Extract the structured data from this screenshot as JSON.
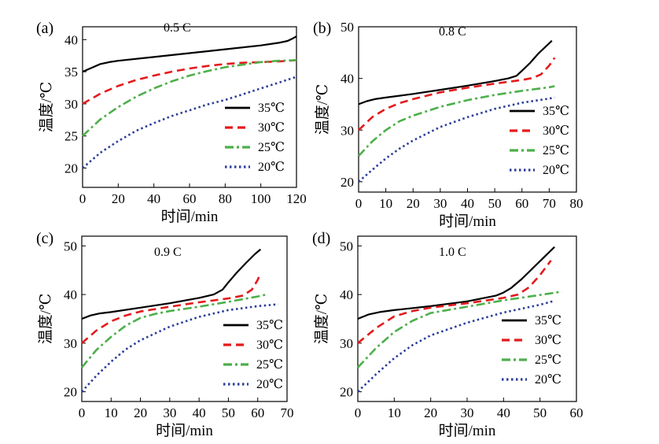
{
  "chart_data": [
    {
      "type": "line",
      "panel_letter": "(a)",
      "annotation": "0.5 C",
      "xlabel": "时间/min",
      "ylabel": "温度/℃",
      "xlim": [
        0,
        120
      ],
      "ylim": [
        17,
        42
      ],
      "xticks": [
        0,
        20,
        40,
        60,
        80,
        100,
        120
      ],
      "yticks": [
        20,
        25,
        30,
        35,
        40
      ],
      "legend_position": "bottom-right",
      "series": [
        {
          "name": "35℃",
          "color": "#000000",
          "style": "solid",
          "x": [
            0,
            5,
            10,
            15,
            20,
            40,
            60,
            80,
            100,
            110,
            115,
            118,
            120
          ],
          "y": [
            35,
            35.6,
            36.2,
            36.5,
            36.7,
            37.3,
            37.9,
            38.5,
            39.1,
            39.5,
            39.8,
            40.2,
            40.5
          ]
        },
        {
          "name": "30℃",
          "color": "#e41a1c",
          "style": "dash",
          "x": [
            0,
            10,
            20,
            30,
            40,
            50,
            60,
            70,
            80,
            90,
            100,
            110,
            120
          ],
          "y": [
            30,
            31.6,
            32.8,
            33.7,
            34.4,
            35.0,
            35.5,
            35.9,
            36.2,
            36.4,
            36.5,
            36.6,
            36.8
          ]
        },
        {
          "name": "25℃",
          "color": "#4daf4a",
          "style": "dashdot",
          "x": [
            0,
            10,
            20,
            30,
            40,
            50,
            60,
            70,
            80,
            90,
            100,
            110,
            120
          ],
          "y": [
            25,
            27.6,
            29.5,
            31.1,
            32.4,
            33.5,
            34.4,
            35.1,
            35.7,
            36.1,
            36.5,
            36.7,
            36.8
          ]
        },
        {
          "name": "20℃",
          "color": "#2b3d9a",
          "style": "dot",
          "x": [
            0,
            10,
            20,
            30,
            40,
            50,
            60,
            70,
            80,
            90,
            100,
            110,
            120
          ],
          "y": [
            20,
            22.4,
            24.2,
            25.8,
            27.0,
            28.1,
            29.0,
            29.9,
            30.6,
            31.5,
            32.4,
            33.3,
            34.2
          ]
        }
      ]
    },
    {
      "type": "line",
      "panel_letter": "(b)",
      "annotation": "0.8 C",
      "xlabel": "时间/min",
      "ylabel": "温度/℃",
      "xlim": [
        0,
        80
      ],
      "ylim": [
        18,
        50
      ],
      "xticks": [
        0,
        10,
        20,
        30,
        40,
        50,
        60,
        70,
        80
      ],
      "yticks": [
        20,
        30,
        40,
        50
      ],
      "legend_position": "bottom-right",
      "series": [
        {
          "name": "35℃",
          "color": "#000000",
          "style": "solid",
          "x": [
            0,
            3,
            6,
            10,
            20,
            30,
            40,
            50,
            55,
            58,
            60,
            63,
            66,
            70,
            71
          ],
          "y": [
            35,
            35.6,
            36.0,
            36.3,
            37.0,
            37.8,
            38.6,
            39.5,
            40.0,
            40.5,
            41.5,
            43.0,
            44.8,
            46.8,
            47.3
          ]
        },
        {
          "name": "30℃",
          "color": "#e41a1c",
          "style": "dash",
          "x": [
            0,
            5,
            10,
            15,
            20,
            30,
            40,
            50,
            60,
            64,
            67,
            70,
            72
          ],
          "y": [
            30,
            32.5,
            34.1,
            35.2,
            36.0,
            37.3,
            38.2,
            39.0,
            39.7,
            40.1,
            40.8,
            42.5,
            44.0
          ]
        },
        {
          "name": "25℃",
          "color": "#4daf4a",
          "style": "dashdot",
          "x": [
            0,
            5,
            10,
            15,
            20,
            30,
            40,
            50,
            60,
            70,
            72
          ],
          "y": [
            25,
            27.8,
            30.0,
            31.7,
            32.8,
            34.5,
            35.8,
            36.8,
            37.6,
            38.3,
            38.5
          ]
        },
        {
          "name": "20℃",
          "color": "#2b3d9a",
          "style": "dot",
          "x": [
            0,
            5,
            10,
            15,
            20,
            30,
            40,
            50,
            60,
            70,
            72
          ],
          "y": [
            20,
            22.3,
            24.5,
            26.4,
            28.0,
            30.6,
            32.5,
            34.1,
            35.3,
            36.1,
            36.3
          ]
        }
      ]
    },
    {
      "type": "line",
      "panel_letter": "(c)",
      "annotation": "0.9 C",
      "xlabel": "时间/min",
      "ylabel": "温度/℃",
      "xlim": [
        0,
        70
      ],
      "ylim": [
        18,
        52
      ],
      "xticks": [
        0,
        10,
        20,
        30,
        40,
        50,
        60,
        70
      ],
      "yticks": [
        20,
        30,
        40,
        50
      ],
      "legend_position": "bottom-right",
      "series": [
        {
          "name": "35℃",
          "color": "#000000",
          "style": "solid",
          "x": [
            0,
            3,
            6,
            10,
            20,
            30,
            40,
            45,
            48,
            50,
            53,
            56,
            59,
            61
          ],
          "y": [
            35,
            35.7,
            36.1,
            36.4,
            37.3,
            38.2,
            39.3,
            40.0,
            41.0,
            42.5,
            44.6,
            46.5,
            48.3,
            49.3
          ]
        },
        {
          "name": "30℃",
          "color": "#e41a1c",
          "style": "dash",
          "x": [
            0,
            5,
            10,
            15,
            20,
            30,
            40,
            50,
            55,
            58,
            60,
            61
          ],
          "y": [
            30,
            32.6,
            34.5,
            35.7,
            36.5,
            37.5,
            38.4,
            39.2,
            39.8,
            41.0,
            43.0,
            44.5
          ]
        },
        {
          "name": "25℃",
          "color": "#4daf4a",
          "style": "dashdot",
          "x": [
            0,
            5,
            10,
            15,
            20,
            25,
            30,
            40,
            50,
            60,
            63
          ],
          "y": [
            25,
            28.6,
            31.3,
            33.6,
            35.2,
            36.0,
            36.6,
            37.5,
            38.5,
            39.6,
            40.0
          ]
        },
        {
          "name": "20℃",
          "color": "#2b3d9a",
          "style": "dot",
          "x": [
            0,
            5,
            10,
            15,
            20,
            30,
            40,
            50,
            60,
            67
          ],
          "y": [
            20,
            23.3,
            26.2,
            28.7,
            30.6,
            33.4,
            35.4,
            36.8,
            37.6,
            38.0
          ]
        }
      ]
    },
    {
      "type": "line",
      "panel_letter": "(d)",
      "annotation": "1.0 C",
      "xlabel": "时间/min",
      "ylabel": "温度/℃",
      "xlim": [
        0,
        60
      ],
      "ylim": [
        18,
        52
      ],
      "xticks": [
        0,
        10,
        20,
        30,
        40,
        50,
        60
      ],
      "yticks": [
        20,
        30,
        40,
        50
      ],
      "legend_position": "bottom-right",
      "series": [
        {
          "name": "35℃",
          "color": "#000000",
          "style": "solid",
          "x": [
            0,
            3,
            6,
            10,
            20,
            30,
            38,
            40,
            42,
            45,
            48,
            51,
            54
          ],
          "y": [
            35,
            35.9,
            36.4,
            36.8,
            37.6,
            38.6,
            39.8,
            40.4,
            41.3,
            43.2,
            45.4,
            47.6,
            49.8
          ]
        },
        {
          "name": "30℃",
          "color": "#e41a1c",
          "style": "dash",
          "x": [
            0,
            5,
            10,
            15,
            20,
            30,
            40,
            44,
            47,
            50,
            53
          ],
          "y": [
            30,
            33.1,
            35.5,
            36.6,
            37.3,
            38.2,
            39.3,
            40.0,
            41.5,
            44.0,
            47.0
          ]
        },
        {
          "name": "25℃",
          "color": "#4daf4a",
          "style": "dashdot",
          "x": [
            0,
            5,
            10,
            15,
            20,
            30,
            40,
            50,
            56
          ],
          "y": [
            25,
            29.0,
            32.3,
            34.6,
            36.2,
            37.5,
            38.8,
            39.9,
            40.6
          ]
        },
        {
          "name": "20℃",
          "color": "#2b3d9a",
          "style": "dot",
          "x": [
            0,
            5,
            10,
            15,
            20,
            30,
            40,
            50,
            54
          ],
          "y": [
            20,
            23.6,
            26.9,
            29.6,
            31.6,
            34.2,
            36.3,
            37.9,
            38.7
          ]
        }
      ]
    }
  ]
}
